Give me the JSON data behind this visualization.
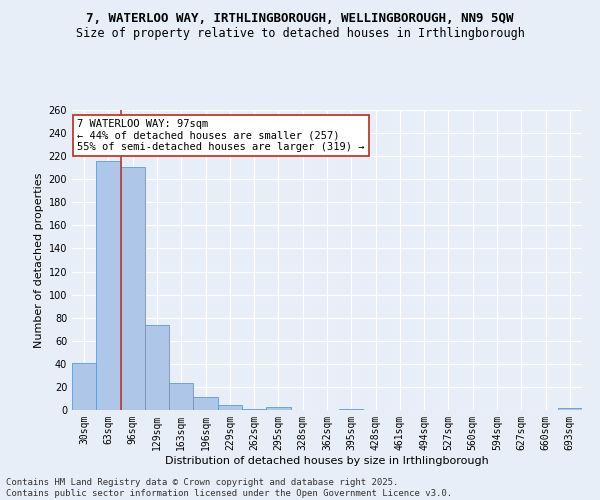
{
  "title_line1": "7, WATERLOO WAY, IRTHLINGBOROUGH, WELLINGBOROUGH, NN9 5QW",
  "title_line2": "Size of property relative to detached houses in Irthlingborough",
  "xlabel": "Distribution of detached houses by size in Irthlingborough",
  "ylabel": "Number of detached properties",
  "categories": [
    "30sqm",
    "63sqm",
    "96sqm",
    "129sqm",
    "163sqm",
    "196sqm",
    "229sqm",
    "262sqm",
    "295sqm",
    "328sqm",
    "362sqm",
    "395sqm",
    "428sqm",
    "461sqm",
    "494sqm",
    "527sqm",
    "560sqm",
    "594sqm",
    "627sqm",
    "660sqm",
    "693sqm"
  ],
  "values": [
    41,
    216,
    211,
    74,
    23,
    11,
    4,
    1,
    3,
    0,
    0,
    1,
    0,
    0,
    0,
    0,
    0,
    0,
    0,
    0,
    2
  ],
  "bar_color": "#aec6e8",
  "bar_edge_color": "#5b9bd5",
  "vline_color": "#c0392b",
  "annotation_text": "7 WATERLOO WAY: 97sqm\n← 44% of detached houses are smaller (257)\n55% of semi-detached houses are larger (319) →",
  "annotation_box_color": "#ffffff",
  "annotation_box_edge": "#c0392b",
  "ylim": [
    0,
    260
  ],
  "yticks": [
    0,
    20,
    40,
    60,
    80,
    100,
    120,
    140,
    160,
    180,
    200,
    220,
    240,
    260
  ],
  "bg_color": "#e8eef7",
  "grid_color": "#ffffff",
  "footer_text": "Contains HM Land Registry data © Crown copyright and database right 2025.\nContains public sector information licensed under the Open Government Licence v3.0.",
  "title_fontsize": 9,
  "subtitle_fontsize": 8.5,
  "axis_label_fontsize": 8,
  "tick_fontsize": 7,
  "annotation_fontsize": 7.5,
  "footer_fontsize": 6.5
}
